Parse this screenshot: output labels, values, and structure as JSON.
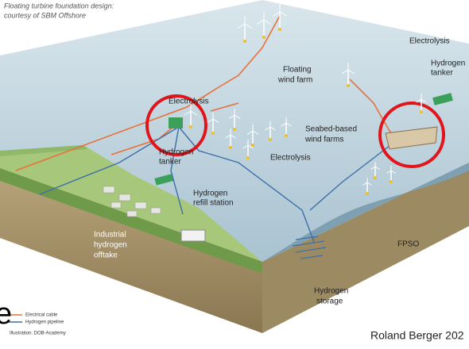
{
  "header": {
    "lines": [
      "Floating turbine foundation design:",
      "courtesy of SBM Offshore"
    ]
  },
  "labels": [
    {
      "lines": [
        "Electrolysis"
      ]
    },
    {
      "lines": [
        "Hydrogen",
        "tanker"
      ]
    },
    {
      "lines": [
        "Floating",
        "wind farm"
      ]
    },
    {
      "lines": [
        "Electrolysis"
      ]
    },
    {
      "lines": [
        "Seabed-based",
        "wind farms"
      ]
    },
    {
      "lines": [
        "Electrolysis"
      ]
    },
    {
      "lines": [
        "Hydrogen",
        "tanker"
      ]
    },
    {
      "lines": [
        "Hydrogen",
        "refill station"
      ]
    },
    {
      "lines": [
        "Industrial",
        "hydrogen",
        "offtake"
      ]
    },
    {
      "lines": [
        "FPSO"
      ]
    },
    {
      "lines": [
        "Hydrogen",
        "storage"
      ]
    }
  ],
  "legend": [
    {
      "label": "Electrical cable"
    },
    {
      "label": "Hydrogen pipeline"
    }
  ],
  "illustration_credit": "Illustration: DOB-Academy",
  "source": "Roland Berger 202",
  "cut_letter": "e"
}
